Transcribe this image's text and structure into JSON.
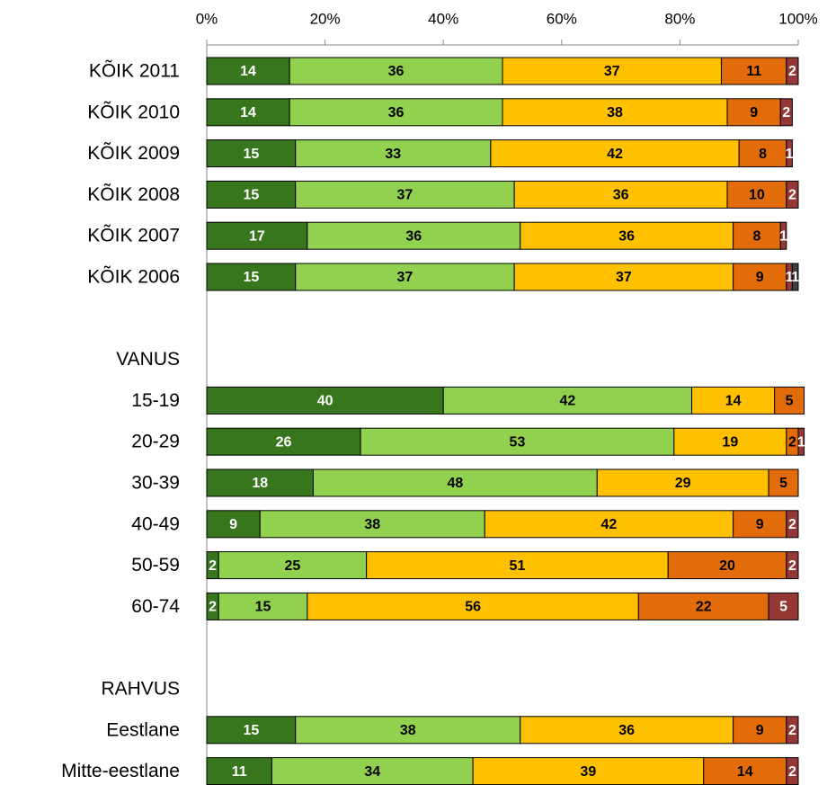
{
  "chart_data": {
    "type": "stacked-bar-horizontal",
    "categories": [
      "KÕIK 2011",
      "KÕIK 2010",
      "KÕIK 2009",
      "KÕIK 2008",
      "KÕIK 2007",
      "KÕIK 2006",
      null,
      "VANUS",
      "15-19",
      "20-29",
      "30-39",
      "40-49",
      "50-59",
      "60-74",
      null,
      "RAHVUS",
      "Eestlane",
      "Mitte-eestlane"
    ],
    "series": [
      {
        "color": "#38761d",
        "label_color": "#ffffff",
        "values": [
          14,
          14,
          15,
          15,
          17,
          15,
          null,
          null,
          40,
          26,
          18,
          9,
          2,
          2,
          null,
          null,
          15,
          11
        ]
      },
      {
        "color": "#92d050",
        "label_color": "#000000",
        "values": [
          36,
          36,
          33,
          37,
          36,
          37,
          null,
          null,
          42,
          53,
          48,
          38,
          25,
          15,
          null,
          null,
          38,
          34
        ]
      },
      {
        "color": "#ffc000",
        "label_color": "#000000",
        "values": [
          37,
          38,
          42,
          36,
          36,
          37,
          null,
          null,
          14,
          19,
          29,
          42,
          51,
          56,
          null,
          null,
          36,
          39
        ]
      },
      {
        "color": "#e36c0a",
        "label_color": "#000000",
        "values": [
          11,
          9,
          8,
          10,
          8,
          9,
          null,
          null,
          5,
          2,
          5,
          9,
          20,
          22,
          null,
          null,
          9,
          14
        ]
      },
      {
        "color": "#953735",
        "label_color": "#ffffff",
        "values": [
          2,
          2,
          1,
          2,
          1,
          1,
          null,
          null,
          null,
          1,
          null,
          2,
          2,
          5,
          null,
          null,
          2,
          2
        ]
      },
      {
        "color": "#404040",
        "label_color": "#ffffff",
        "values": [
          null,
          null,
          null,
          null,
          null,
          1,
          null,
          null,
          null,
          null,
          null,
          null,
          null,
          null,
          null,
          null,
          null,
          null
        ]
      }
    ],
    "xlim": [
      0,
      100
    ],
    "xticks": [
      {
        "value": 0,
        "label": "0%"
      },
      {
        "value": 20,
        "label": "20%"
      },
      {
        "value": 40,
        "label": "40%"
      },
      {
        "value": 60,
        "label": "60%"
      },
      {
        "value": 80,
        "label": "80%"
      },
      {
        "value": 100,
        "label": "100%"
      }
    ]
  }
}
